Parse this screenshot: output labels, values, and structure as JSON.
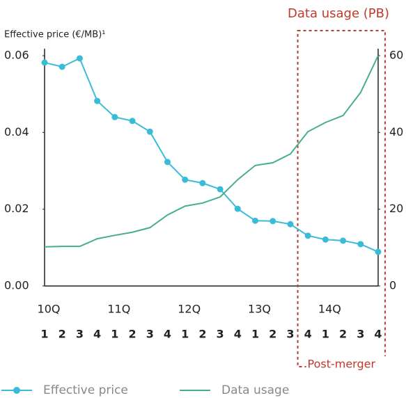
{
  "chart_data": {
    "type": "line",
    "y_label": "Effective price (€/MB)¹",
    "y2_label": "Data usage (PB)",
    "annotation": "Post-merger",
    "year_labels": [
      "10Q",
      "11Q",
      "12Q",
      "13Q",
      "14Q"
    ],
    "categories": [
      "1",
      "2",
      "3",
      "4",
      "1",
      "2",
      "3",
      "4",
      "1",
      "2",
      "3",
      "4",
      "1",
      "2",
      "3",
      "4",
      "1",
      "2",
      "3",
      "4"
    ],
    "series": [
      {
        "name": "Effective price",
        "color": "#3bbcd6",
        "markers": true,
        "values": [
          0.0582,
          0.0571,
          0.0593,
          0.0482,
          0.044,
          0.043,
          0.0402,
          0.0323,
          0.0277,
          0.0268,
          0.0252,
          0.0201,
          0.017,
          0.0169,
          0.0161,
          0.0131,
          0.0121,
          0.0118,
          0.0109,
          0.0089
        ]
      },
      {
        "name": "Data usage",
        "color": "#45ae8c",
        "markers": false,
        "axis": "y2",
        "values": [
          10.2,
          10.3,
          10.3,
          12.3,
          13.2,
          14.0,
          15.2,
          18.5,
          20.8,
          21.6,
          23.2,
          27.7,
          31.4,
          32.1,
          34.4,
          40.2,
          42.6,
          44.4,
          50.4,
          60.0
        ]
      }
    ],
    "ylim": [
      0,
      0.06
    ],
    "yticks": [
      {
        "value": 0,
        "label": "0.00"
      },
      0.02,
      0.04,
      0.06
    ],
    "y2lim": [
      0,
      60
    ],
    "y2ticks": [
      0,
      20,
      40,
      60
    ],
    "grid": false
  }
}
